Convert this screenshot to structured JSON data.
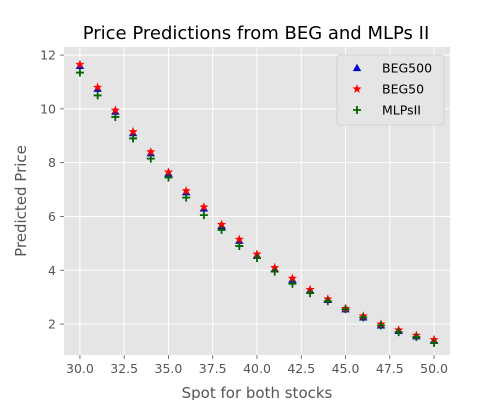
{
  "chart_data": {
    "type": "scatter",
    "title": "Price Predictions from BEG and MLPs II",
    "xlabel": "Spot for both stocks",
    "ylabel": "Predicted Price",
    "xlim": [
      29.1,
      50.9
    ],
    "ylim": [
      0.85,
      12.3
    ],
    "xticks": [
      30.0,
      32.5,
      35.0,
      37.5,
      40.0,
      42.5,
      45.0,
      47.5,
      50.0
    ],
    "xtick_labels": [
      "30.0",
      "32.5",
      "35.0",
      "37.5",
      "40.0",
      "42.5",
      "45.0",
      "47.5",
      "50.0"
    ],
    "yticks": [
      2,
      4,
      6,
      8,
      10,
      12
    ],
    "ytick_labels": [
      "2",
      "4",
      "6",
      "8",
      "10",
      "12"
    ],
    "grid": true,
    "legend_position": "top-right",
    "x": [
      30,
      31,
      32,
      33,
      34,
      35,
      36,
      37,
      38,
      39,
      40,
      41,
      42,
      43,
      44,
      45,
      46,
      47,
      48,
      49,
      50
    ],
    "series": [
      {
        "name": "BEG500",
        "marker": "triangle",
        "color": "#0000cc",
        "values": [
          11.6,
          10.75,
          9.9,
          9.1,
          8.35,
          7.6,
          6.9,
          6.3,
          5.65,
          5.1,
          4.55,
          4.05,
          3.65,
          3.25,
          2.9,
          2.55,
          2.25,
          1.95,
          1.75,
          1.55,
          1.38
        ]
      },
      {
        "name": "BEG50",
        "marker": "star",
        "color": "#ff0000",
        "values": [
          11.65,
          10.8,
          9.95,
          9.15,
          8.4,
          7.65,
          6.95,
          6.35,
          5.7,
          5.15,
          4.6,
          4.1,
          3.7,
          3.28,
          2.93,
          2.58,
          2.3,
          2.0,
          1.78,
          1.58,
          1.42
        ]
      },
      {
        "name": "MLPsII",
        "marker": "plus",
        "color": "#006400",
        "values": [
          11.35,
          10.5,
          9.7,
          8.9,
          8.15,
          7.45,
          6.7,
          6.05,
          5.5,
          4.9,
          4.45,
          3.95,
          3.5,
          3.15,
          2.85,
          2.55,
          2.25,
          1.95,
          1.7,
          1.52,
          1.3
        ]
      }
    ]
  }
}
